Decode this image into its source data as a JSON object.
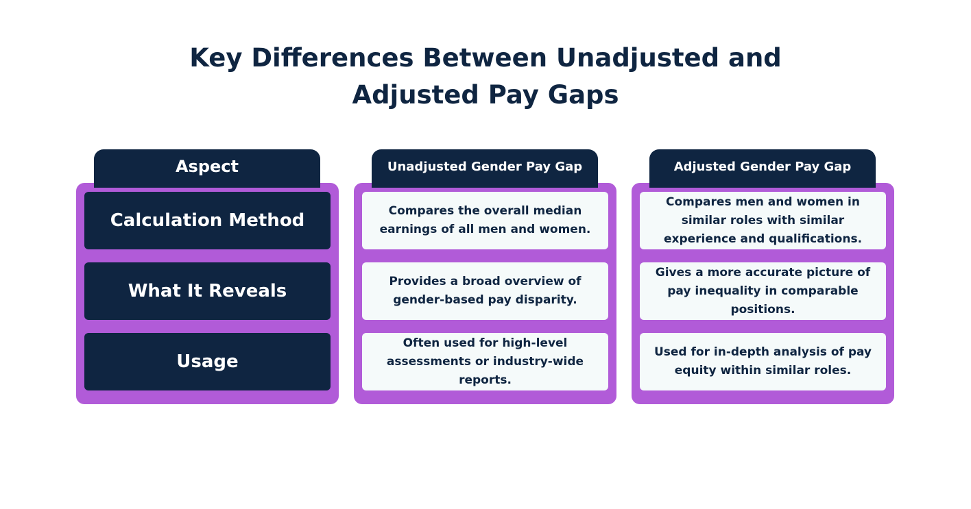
{
  "title": {
    "line1": "Key Differences Between Unadjusted and",
    "line2": "Adjusted Pay Gaps"
  },
  "columns": [
    {
      "header": "Aspect",
      "cells": [
        "Calculation Method",
        "What It Reveals",
        "Usage"
      ]
    },
    {
      "header": "Unadjusted Gender Pay Gap",
      "cells": [
        "Compares the overall median earnings of all men and women.",
        "Provides a broad overview of gender-based pay disparity.",
        "Often used for high-level assessments or industry-wide reports."
      ]
    },
    {
      "header": "Adjusted Gender Pay Gap",
      "cells": [
        "Compares men and women in similar roles with similar experience and qualifications.",
        "Gives a more accurate picture of pay inequality in comparable positions.",
        "Used for in-depth analysis of pay equity within similar roles."
      ]
    }
  ],
  "colors": {
    "navy": "#0f2541",
    "purple": "#b15bd8",
    "cell_background": "#f5fafa",
    "page_background": "#ffffff"
  }
}
